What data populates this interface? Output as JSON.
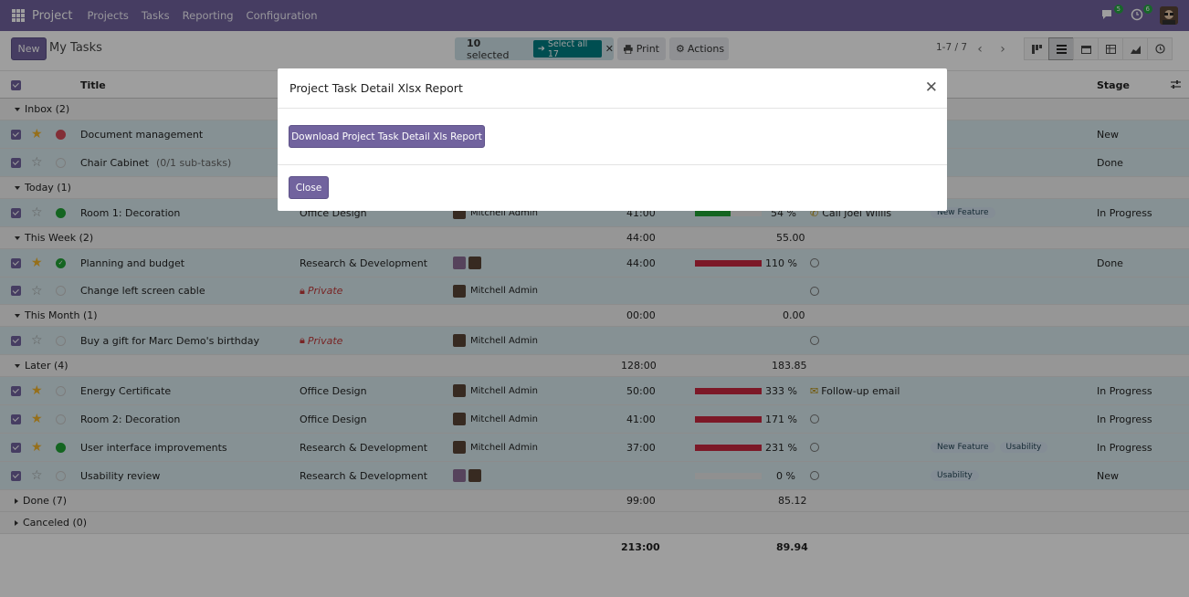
{
  "navbar": {
    "brand": "Project",
    "menus": [
      "Projects",
      "Tasks",
      "Reporting",
      "Configuration"
    ],
    "chat_badge": "5",
    "activity_badge": "6"
  },
  "control": {
    "new_label": "New",
    "title": "My Tasks",
    "selected_count": "10",
    "selected_suffix": "selected",
    "select_all_label": "Select all 17",
    "print_label": "Print",
    "actions_label": "Actions",
    "pager": "1-7 / 7"
  },
  "columns": {
    "title": "Title",
    "stage": "Stage"
  },
  "groups": {
    "inbox": {
      "label": "Inbox (2)"
    },
    "today": {
      "label": "Today (1)"
    },
    "week": {
      "label": "This Week (2)",
      "hours": "44:00",
      "progress": "55.00"
    },
    "month": {
      "label": "This Month (1)",
      "hours": "00:00",
      "progress": "0.00"
    },
    "later": {
      "label": "Later (4)",
      "hours": "128:00",
      "progress": "183.85"
    },
    "done": {
      "label": "Done (7)",
      "hours": "99:00",
      "progress": "85.12"
    },
    "canceled": {
      "label": "Canceled (0)"
    }
  },
  "rows": [
    {
      "title": "Document management",
      "stage": "New"
    },
    {
      "title": "Chair Cabinet",
      "subtasks": "(0/1 sub-tasks)",
      "stage": "Done"
    },
    {
      "title": "Room 1: Decoration",
      "project": "Office Design",
      "assignee": "Mitchell Admin",
      "hours": "41:00",
      "progress_label": "54 %",
      "progress": 54,
      "activity": "Call Joel Willis",
      "tags": [
        "New Feature"
      ],
      "stage": "In Progress"
    },
    {
      "title": "Planning and budget",
      "project": "Research & Development",
      "hours": "44:00",
      "progress_label": "110 %",
      "progress": 110,
      "stage": "Done"
    },
    {
      "title": "Change left screen cable",
      "project": "Private",
      "assignee": "Mitchell Admin"
    },
    {
      "title": "Buy a gift for Marc Demo's birthday",
      "project": "Private",
      "assignee": "Mitchell Admin"
    },
    {
      "title": "Energy Certificate",
      "project": "Office Design",
      "assignee": "Mitchell Admin",
      "hours": "50:00",
      "progress_label": "333 %",
      "progress": 333,
      "activity": "Follow-up email",
      "stage": "In Progress"
    },
    {
      "title": "Room 2: Decoration",
      "project": "Office Design",
      "assignee": "Mitchell Admin",
      "hours": "41:00",
      "progress_label": "171 %",
      "progress": 171,
      "stage": "In Progress"
    },
    {
      "title": "User interface improvements",
      "project": "Research & Development",
      "assignee": "Mitchell Admin",
      "hours": "37:00",
      "progress_label": "231 %",
      "progress": 231,
      "tags": [
        "New Feature",
        "Usability"
      ],
      "stage": "In Progress"
    },
    {
      "title": "Usability review",
      "project": "Research & Development",
      "progress_label": "0 %",
      "progress": 0,
      "tags": [
        "Usability"
      ],
      "stage": "New"
    }
  ],
  "totals": {
    "hours": "213:00",
    "progress": "89.94"
  },
  "modal": {
    "title": "Project Task Detail Xlsx Report",
    "download_label": "Download Project Task Detail Xls Report",
    "close_label": "Close"
  },
  "colors": {
    "brand": "#71639e",
    "over": "#c8283f",
    "ok": "#21a336"
  }
}
